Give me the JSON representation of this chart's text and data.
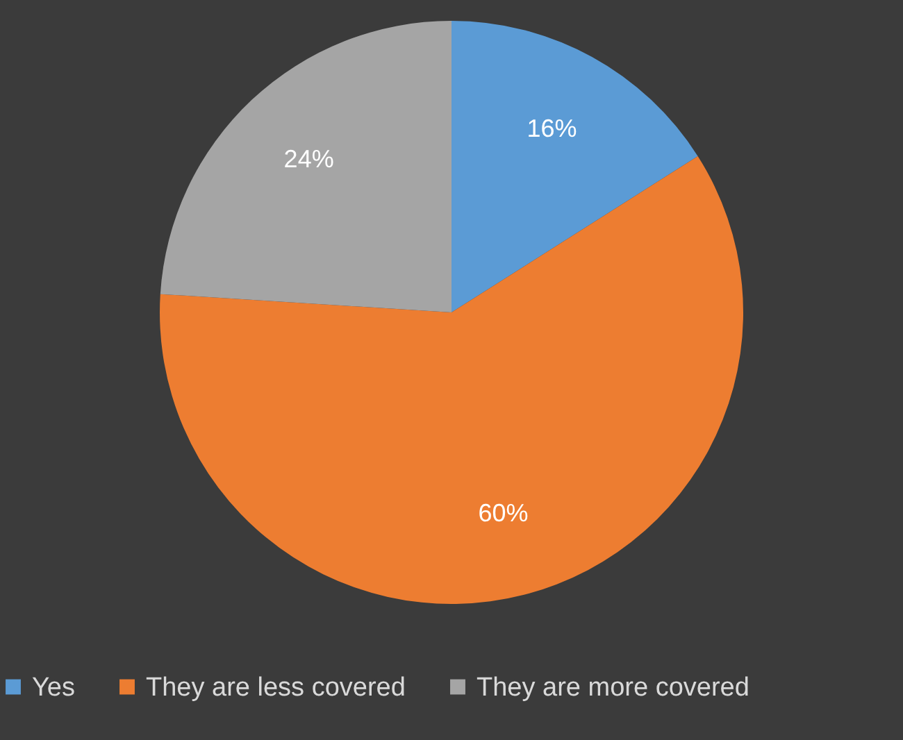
{
  "chart_data": {
    "type": "pie",
    "categories": [
      "Yes",
      "They are less covered",
      "They are more covered"
    ],
    "values": [
      16,
      60,
      24
    ],
    "colors": [
      "#5b9bd5",
      "#ed7d31",
      "#a5a5a5"
    ],
    "value_labels": [
      "16%",
      "60%",
      "24%"
    ],
    "legend": "bottom"
  }
}
